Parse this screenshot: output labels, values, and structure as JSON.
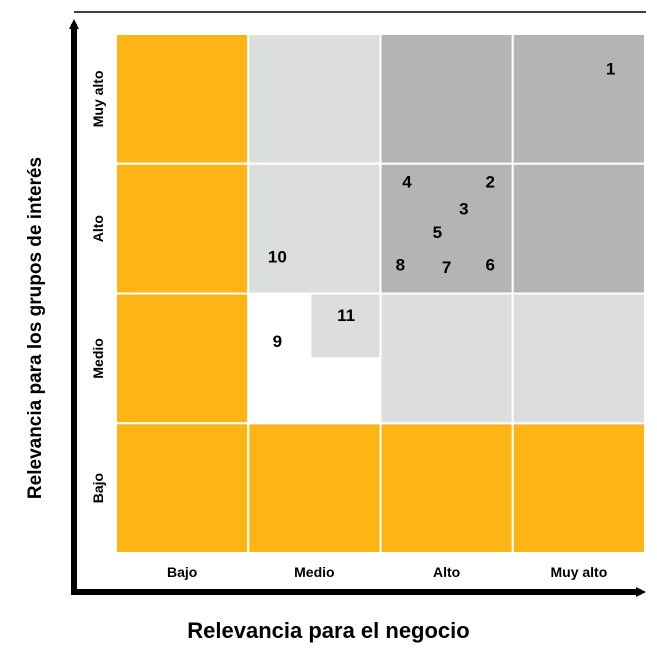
{
  "chart_data": {
    "type": "scatter",
    "title": "",
    "xlabel": "Relevancia para el negocio",
    "ylabel": "Relevancia para los grupos de interés",
    "x_categories": [
      "Bajo",
      "Medio",
      "Alto",
      "Muy alto"
    ],
    "y_categories": [
      "Bajo",
      "Medio",
      "Alto",
      "Muy alto"
    ],
    "xlim": [
      0,
      4
    ],
    "ylim": [
      0,
      4
    ],
    "colors": {
      "orange": "#fdb515",
      "light_gray": "#dcdddf",
      "dark_gray": "#b3b4b6",
      "white": "#ffffff"
    },
    "cells": [
      {
        "x": 0,
        "y": 3,
        "w": 1,
        "h": 1,
        "color": "orange"
      },
      {
        "x": 0,
        "y": 2,
        "w": 1,
        "h": 1,
        "color": "orange"
      },
      {
        "x": 0,
        "y": 1,
        "w": 1,
        "h": 1,
        "color": "orange"
      },
      {
        "x": 0,
        "y": 0,
        "w": 1,
        "h": 1,
        "color": "orange"
      },
      {
        "x": 1,
        "y": 0,
        "w": 1,
        "h": 1,
        "color": "orange"
      },
      {
        "x": 2,
        "y": 0,
        "w": 1,
        "h": 1,
        "color": "orange"
      },
      {
        "x": 3,
        "y": 0,
        "w": 1,
        "h": 1,
        "color": "orange"
      },
      {
        "x": 1,
        "y": 3,
        "w": 1,
        "h": 1,
        "color": "light_gray"
      },
      {
        "x": 1,
        "y": 2,
        "w": 1,
        "h": 1,
        "color": "light_gray"
      },
      {
        "x": 1,
        "y": 1,
        "w": 1,
        "h": 1,
        "color": "white"
      },
      {
        "x": 1.47,
        "y": 1.5,
        "w": 0.53,
        "h": 0.5,
        "color": "light_gray"
      },
      {
        "x": 2,
        "y": 3,
        "w": 1,
        "h": 1,
        "color": "dark_gray"
      },
      {
        "x": 3,
        "y": 3,
        "w": 1,
        "h": 1,
        "color": "dark_gray"
      },
      {
        "x": 2,
        "y": 2,
        "w": 1,
        "h": 1,
        "color": "dark_gray"
      },
      {
        "x": 3,
        "y": 2,
        "w": 1,
        "h": 1,
        "color": "dark_gray"
      },
      {
        "x": 2,
        "y": 1,
        "w": 1,
        "h": 1,
        "color": "light_gray"
      },
      {
        "x": 3,
        "y": 1,
        "w": 1,
        "h": 1,
        "color": "light_gray"
      }
    ],
    "points": [
      {
        "label": "1",
        "x": 3.74,
        "y": 3.73
      },
      {
        "label": "2",
        "x": 2.83,
        "y": 2.86
      },
      {
        "label": "3",
        "x": 2.63,
        "y": 2.65
      },
      {
        "label": "4",
        "x": 2.2,
        "y": 2.86
      },
      {
        "label": "5",
        "x": 2.43,
        "y": 2.47
      },
      {
        "label": "6",
        "x": 2.83,
        "y": 2.22
      },
      {
        "label": "7",
        "x": 2.5,
        "y": 2.2
      },
      {
        "label": "8",
        "x": 2.15,
        "y": 2.22
      },
      {
        "label": "9",
        "x": 1.22,
        "y": 1.63
      },
      {
        "label": "10",
        "x": 1.22,
        "y": 2.28
      },
      {
        "label": "11",
        "x": 1.74,
        "y": 1.83
      }
    ]
  }
}
